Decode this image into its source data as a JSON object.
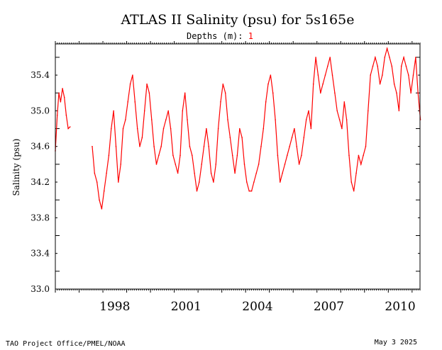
{
  "chart_data": {
    "type": "line",
    "title": "ATLAS II Salinity (psu) for 5s165e",
    "subtitle": {
      "label": "Depths (m):",
      "value": "1",
      "value_color": "#ff0000"
    },
    "ylabel": "Salinity (psu)",
    "xlabel": "",
    "x_axis": {
      "type": "time",
      "range": [
        "1996-01-01",
        "2011-05-01"
      ],
      "labeled_years": [
        "1998",
        "2001",
        "2004",
        "2007",
        "2010"
      ]
    },
    "ylim": [
      33.0,
      35.75
    ],
    "yticks": [
      "33.0",
      "33.4",
      "33.8",
      "34.2",
      "34.6",
      "35.0",
      "35.4"
    ],
    "grid": false,
    "series": [
      {
        "color": "#ff0000",
        "segments": [
          {
            "x": [
              "1996.00",
              "1996.08",
              "1996.15",
              "1996.22",
              "1996.30",
              "1996.38",
              "1996.46",
              "1996.54",
              "1996.62"
            ],
            "y": [
              34.55,
              34.95,
              35.2,
              35.1,
              35.25,
              35.15,
              34.95,
              34.8,
              34.82
            ]
          },
          {
            "x": [
              "1997.55",
              "1997.65",
              "1997.75",
              "1997.85",
              "1997.95",
              "1998.05",
              "1998.15",
              "1998.25",
              "1998.35",
              "1998.45",
              "1998.55",
              "1998.65",
              "1998.75",
              "1998.85",
              "1998.95",
              "1999.05",
              "1999.15",
              "1999.25",
              "1999.35",
              "1999.45",
              "1999.55",
              "1999.65",
              "1999.75",
              "1999.85",
              "1999.95",
              "2000.05",
              "2000.15",
              "2000.25",
              "2000.35",
              "2000.45",
              "2000.55",
              "2000.65",
              "2000.75",
              "2000.85",
              "2000.95",
              "2001.05",
              "2001.15",
              "2001.25",
              "2001.35",
              "2001.45",
              "2001.55",
              "2001.65",
              "2001.75",
              "2001.85",
              "2001.95",
              "2002.05",
              "2002.15",
              "2002.25",
              "2002.35",
              "2002.45",
              "2002.55",
              "2002.65",
              "2002.75",
              "2002.85",
              "2002.95",
              "2003.05",
              "2003.15",
              "2003.25",
              "2003.35",
              "2003.45",
              "2003.55",
              "2003.65",
              "2003.75",
              "2003.85",
              "2003.95",
              "2004.05",
              "2004.15",
              "2004.25",
              "2004.35",
              "2004.45",
              "2004.55",
              "2004.65",
              "2004.75",
              "2004.85",
              "2004.95",
              "2005.05",
              "2005.15",
              "2005.25",
              "2005.35",
              "2005.45",
              "2005.55",
              "2005.65",
              "2005.75",
              "2005.85",
              "2005.95",
              "2006.05",
              "2006.15",
              "2006.25",
              "2006.35",
              "2006.45",
              "2006.55",
              "2006.65",
              "2006.75",
              "2006.85",
              "2006.95",
              "2007.05",
              "2007.15",
              "2007.25",
              "2007.35",
              "2007.45",
              "2007.55",
              "2007.65",
              "2007.75",
              "2007.85",
              "2007.95",
              "2008.05",
              "2008.15",
              "2008.25",
              "2008.35",
              "2008.45",
              "2008.55",
              "2008.65",
              "2008.75",
              "2008.85",
              "2008.95",
              "2009.05",
              "2009.15",
              "2009.25",
              "2009.35",
              "2009.45",
              "2009.55",
              "2009.65",
              "2009.75",
              "2009.85",
              "2009.95",
              "2010.05",
              "2010.15",
              "2010.25",
              "2010.35",
              "2010.45",
              "2010.55",
              "2010.65",
              "2010.75",
              "2010.85",
              "2010.95",
              "2011.05",
              "2011.15",
              "2011.25",
              "2011.35"
            ],
            "y": [
              34.6,
              34.3,
              34.2,
              34.0,
              33.9,
              34.1,
              34.3,
              34.5,
              34.8,
              35.0,
              34.6,
              34.2,
              34.4,
              34.8,
              34.9,
              35.1,
              35.3,
              35.4,
              35.1,
              34.8,
              34.6,
              34.7,
              35.0,
              35.3,
              35.2,
              34.9,
              34.6,
              34.4,
              34.5,
              34.6,
              34.8,
              34.9,
              35.0,
              34.8,
              34.5,
              34.4,
              34.3,
              34.5,
              35.0,
              35.2,
              34.9,
              34.6,
              34.5,
              34.3,
              34.1,
              34.2,
              34.4,
              34.6,
              34.8,
              34.6,
              34.3,
              34.2,
              34.4,
              34.8,
              35.1,
              35.3,
              35.2,
              34.9,
              34.7,
              34.5,
              34.3,
              34.5,
              34.8,
              34.7,
              34.4,
              34.2,
              34.1,
              34.1,
              34.2,
              34.3,
              34.4,
              34.6,
              34.8,
              35.1,
              35.3,
              35.4,
              35.2,
              34.9,
              34.5,
              34.2,
              34.3,
              34.4,
              34.5,
              34.6,
              34.7,
              34.8,
              34.6,
              34.4,
              34.5,
              34.7,
              34.9,
              35.0,
              34.8,
              35.3,
              35.6,
              35.4,
              35.2,
              35.3,
              35.4,
              35.5,
              35.6,
              35.4,
              35.2,
              35.0,
              34.9,
              34.8,
              35.1,
              34.9,
              34.5,
              34.2,
              34.1,
              34.3,
              34.5,
              34.4,
              34.5,
              34.6,
              35.0,
              35.4,
              35.5,
              35.6,
              35.5,
              35.3,
              35.4,
              35.6,
              35.7,
              35.6,
              35.5,
              35.3,
              35.2,
              35.0,
              35.5,
              35.6,
              35.5,
              35.4,
              35.2,
              35.4,
              35.6,
              35.2,
              34.9
            ]
          }
        ]
      }
    ],
    "colors": {
      "series": "#ff0000",
      "axes": "#000000",
      "background": "#ffffff"
    }
  },
  "footer": {
    "left": "TAO Project Office/PMEL/NOAA",
    "right": "May  3 2025"
  }
}
